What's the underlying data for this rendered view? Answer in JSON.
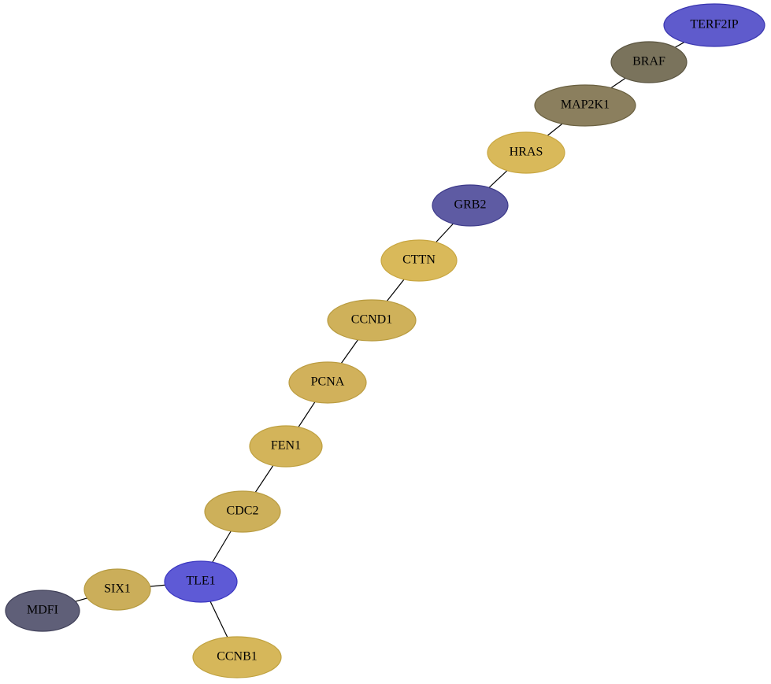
{
  "nodes": [
    {
      "label": "TERF2IP"
    },
    {
      "label": "BRAF"
    },
    {
      "label": "MAP2K1"
    },
    {
      "label": "HRAS"
    },
    {
      "label": "GRB2"
    },
    {
      "label": "CTTN"
    },
    {
      "label": "CCND1"
    },
    {
      "label": "PCNA"
    },
    {
      "label": "FEN1"
    },
    {
      "label": "CDC2"
    },
    {
      "label": "TLE1"
    },
    {
      "label": "SIX1"
    },
    {
      "label": "MDFI"
    },
    {
      "label": "CCNB1"
    }
  ]
}
